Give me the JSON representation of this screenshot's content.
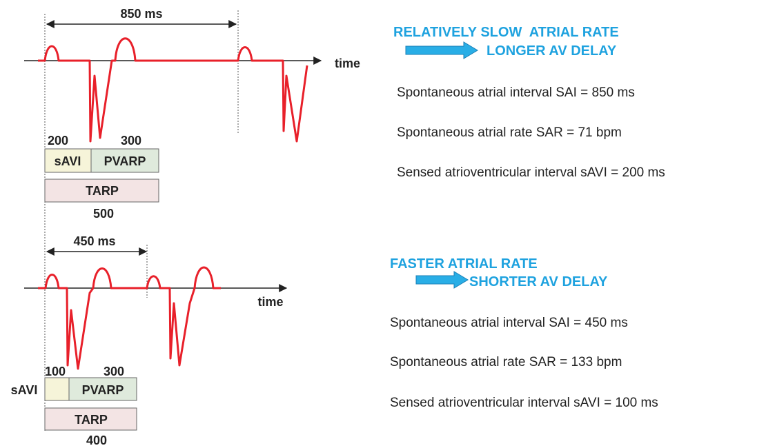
{
  "panels": [
    {
      "interval_label": "850 ms",
      "time_label": "time",
      "savi_value": "200",
      "pvarp_value": "300",
      "savi_label": "sAVI",
      "pvarp_label": "PVARP",
      "tarp_label": "TARP",
      "tarp_value": "500",
      "heading": [
        "RELATIVELY SLOW  ATRIAL RATE",
        "LONGER AV DELAY"
      ],
      "lines": [
        "Spontaneous atrial interval SAI = 850 ms",
        "Spontaneous atrial rate SAR = 71 bpm",
        "Sensed atrioventricular interval sAVI = 200 ms"
      ]
    },
    {
      "interval_label": "450 ms",
      "time_label": "time",
      "savi_value": "100",
      "pvarp_value": "300",
      "savi_label": "sAVI",
      "pvarp_label": "PVARP",
      "tarp_label": "TARP",
      "tarp_value": "400",
      "heading": [
        "FASTER ATRIAL RATE",
        "SHORTER AV DELAY"
      ],
      "lines": [
        "Spontaneous atrial interval SAI = 450 ms",
        "Spontaneous atrial rate SAR = 133 bpm",
        "Sensed atrioventricular interval sAVI = 100 ms"
      ]
    }
  ]
}
